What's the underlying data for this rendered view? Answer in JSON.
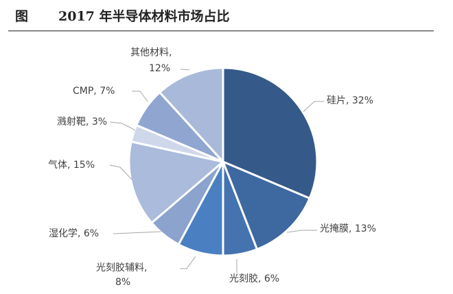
{
  "header": {
    "figure_label": "图",
    "title": "2017 年半导体材料市场占比"
  },
  "chart_data": {
    "type": "pie",
    "title": "2017 年半导体材料市场占比",
    "start": "12 o'clock, clockwise",
    "slices": [
      {
        "label": "硅片",
        "value": 32,
        "text": "硅片, 32%",
        "color": "#355a8a"
      },
      {
        "label": "光掩膜",
        "value": 13,
        "text": "光掩膜, 13%",
        "color": "#3e68a0"
      },
      {
        "label": "光刻胶",
        "value": 6,
        "text": "光刻胶, 6%",
        "color": "#4573b0"
      },
      {
        "label": "光刻胶辅料",
        "value": 8,
        "text": [
          "光刻胶辅料,",
          "8%"
        ],
        "color": "#4a80c2"
      },
      {
        "label": "湿化学",
        "value": 6,
        "text": "湿化学, 6%",
        "color": "#8ba3cd"
      },
      {
        "label": "气体",
        "value": 15,
        "text": "气体, 15%",
        "color": "#aabbdb"
      },
      {
        "label": "溅射靶",
        "value": 3,
        "text": "溅射靶, 3%",
        "color": "#cfd8ea"
      },
      {
        "label": "CMP",
        "value": 7,
        "text": "CMP, 7%",
        "color": "#90a6d1"
      },
      {
        "label": "其他材料",
        "value": 12,
        "text": [
          "其他材料,",
          "12%"
        ],
        "color": "#a9b9d9"
      }
    ]
  }
}
